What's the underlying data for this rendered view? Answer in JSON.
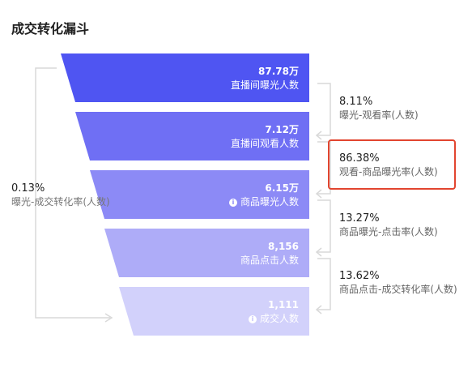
{
  "title": "成交转化漏斗",
  "stages": [
    {
      "value": "87.78万",
      "label": "直播间曝光人数",
      "icon": "",
      "color": "#4f55f2"
    },
    {
      "value": "7.12万",
      "label": "直播间观看人数",
      "icon": "",
      "color": "#6f6ff4"
    },
    {
      "value": "6.15万",
      "label": "商品曝光人数",
      "icon": "info-icon",
      "color": "#8c8af6"
    },
    {
      "value": "8,156",
      "label": "商品点击人数",
      "icon": "",
      "color": "#aeacf8"
    },
    {
      "value": "1,111",
      "label": "成交人数",
      "icon": "info-icon",
      "color": "#d2d1fb"
    }
  ],
  "rates": [
    {
      "pct": "8.11%",
      "name": "曝光-观看率(人数)"
    },
    {
      "pct": "86.38%",
      "name": "观看-商品曝光率(人数)"
    },
    {
      "pct": "13.27%",
      "name": "商品曝光-点击率(人数)"
    },
    {
      "pct": "13.62%",
      "name": "商品点击-成交转化率(人数)"
    }
  ],
  "overall": {
    "pct": "0.13%",
    "name": "曝光-成交转化率(人数)"
  },
  "info_glyph": "i"
}
